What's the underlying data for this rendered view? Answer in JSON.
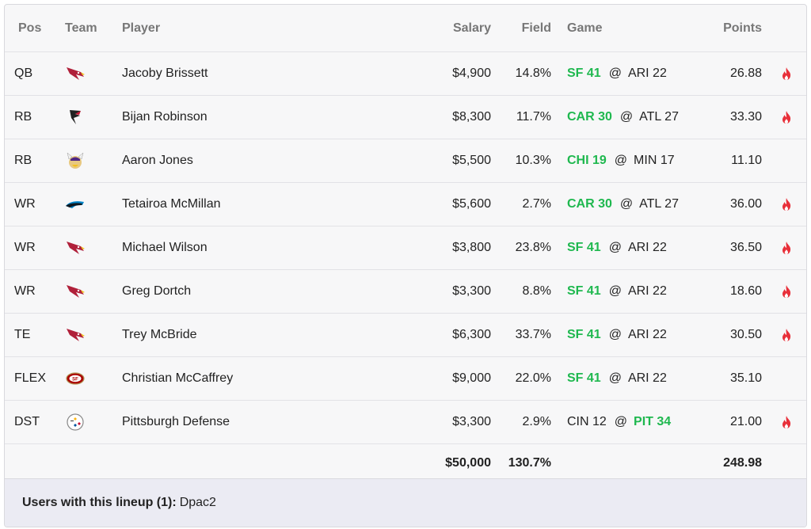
{
  "headers": {
    "pos": "Pos",
    "team": "Team",
    "player": "Player",
    "salary": "Salary",
    "field": "Field",
    "game": "Game",
    "points": "Points"
  },
  "rows": [
    {
      "pos": "QB",
      "team_logo": "cardinals-logo",
      "player": "Jacoby Brissett",
      "salary": "$4,900",
      "field": "14.8%",
      "away": "SF 41",
      "away_win": true,
      "at": "@",
      "home": "ARI 22",
      "home_win": false,
      "points": "26.88",
      "hot": true
    },
    {
      "pos": "RB",
      "team_logo": "falcons-logo",
      "player": "Bijan Robinson",
      "salary": "$8,300",
      "field": "11.7%",
      "away": "CAR 30",
      "away_win": true,
      "at": "@",
      "home": "ATL 27",
      "home_win": false,
      "points": "33.30",
      "hot": true
    },
    {
      "pos": "RB",
      "team_logo": "vikings-logo",
      "player": "Aaron Jones",
      "salary": "$5,500",
      "field": "10.3%",
      "away": "CHI 19",
      "away_win": true,
      "at": "@",
      "home": "MIN 17",
      "home_win": false,
      "points": "11.10",
      "hot": false
    },
    {
      "pos": "WR",
      "team_logo": "panthers-logo",
      "player": "Tetairoa McMillan",
      "salary": "$5,600",
      "field": "2.7%",
      "away": "CAR 30",
      "away_win": true,
      "at": "@",
      "home": "ATL 27",
      "home_win": false,
      "points": "36.00",
      "hot": true
    },
    {
      "pos": "WR",
      "team_logo": "cardinals-logo",
      "player": "Michael Wilson",
      "salary": "$3,800",
      "field": "23.8%",
      "away": "SF 41",
      "away_win": true,
      "at": "@",
      "home": "ARI 22",
      "home_win": false,
      "points": "36.50",
      "hot": true
    },
    {
      "pos": "WR",
      "team_logo": "cardinals-logo",
      "player": "Greg Dortch",
      "salary": "$3,300",
      "field": "8.8%",
      "away": "SF 41",
      "away_win": true,
      "at": "@",
      "home": "ARI 22",
      "home_win": false,
      "points": "18.60",
      "hot": true
    },
    {
      "pos": "TE",
      "team_logo": "cardinals-logo",
      "player": "Trey McBride",
      "salary": "$6,300",
      "field": "33.7%",
      "away": "SF 41",
      "away_win": true,
      "at": "@",
      "home": "ARI 22",
      "home_win": false,
      "points": "30.50",
      "hot": true
    },
    {
      "pos": "FLEX",
      "team_logo": "49ers-logo",
      "player": "Christian McCaffrey",
      "salary": "$9,000",
      "field": "22.0%",
      "away": "SF 41",
      "away_win": true,
      "at": "@",
      "home": "ARI 22",
      "home_win": false,
      "points": "35.10",
      "hot": false
    },
    {
      "pos": "DST",
      "team_logo": "steelers-logo",
      "player": "Pittsburgh Defense",
      "salary": "$3,300",
      "field": "2.9%",
      "away": "CIN 12",
      "away_win": false,
      "at": "@",
      "home": "PIT 34",
      "home_win": true,
      "points": "21.00",
      "hot": true
    }
  ],
  "totals": {
    "salary": "$50,000",
    "field": "130.7%",
    "points": "248.98"
  },
  "footer": {
    "label": "Users with this lineup (1):",
    "users": "Dpac2"
  },
  "colors": {
    "win": "#1fb84f",
    "fire": "#e8303a",
    "footer_bg": "#ebebf3"
  },
  "icons": {
    "hot": "fire-icon"
  }
}
